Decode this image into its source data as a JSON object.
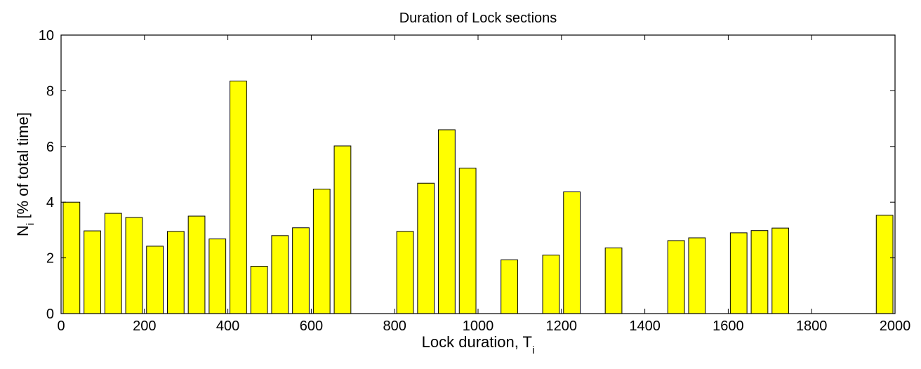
{
  "chart_data": {
    "type": "bar",
    "title": "Duration of Lock sections",
    "xlabel": {
      "main": "Lock duration, T",
      "sub": "i"
    },
    "ylabel": {
      "main": "N",
      "sub": "i",
      "rest": " [% of total time]"
    },
    "xlim": [
      0,
      2000
    ],
    "ylim": [
      0,
      10
    ],
    "xticks": [
      0,
      200,
      400,
      600,
      800,
      1000,
      1200,
      1400,
      1600,
      1800,
      2000
    ],
    "yticks": [
      0,
      2,
      4,
      6,
      8,
      10
    ],
    "bar_width": 40,
    "bar_color": "#ffff00",
    "grid": false,
    "x": [
      25,
      75,
      125,
      175,
      225,
      275,
      325,
      375,
      425,
      475,
      525,
      575,
      625,
      675,
      825,
      875,
      925,
      975,
      1075,
      1175,
      1225,
      1325,
      1475,
      1525,
      1625,
      1675,
      1725,
      1975
    ],
    "values": [
      4.0,
      2.97,
      3.6,
      3.45,
      2.42,
      2.95,
      3.5,
      2.68,
      8.35,
      1.7,
      2.8,
      3.08,
      4.47,
      6.02,
      2.95,
      4.68,
      6.6,
      5.22,
      1.93,
      2.1,
      4.37,
      2.36,
      2.62,
      2.72,
      2.9,
      2.98,
      3.07,
      3.53
    ]
  }
}
